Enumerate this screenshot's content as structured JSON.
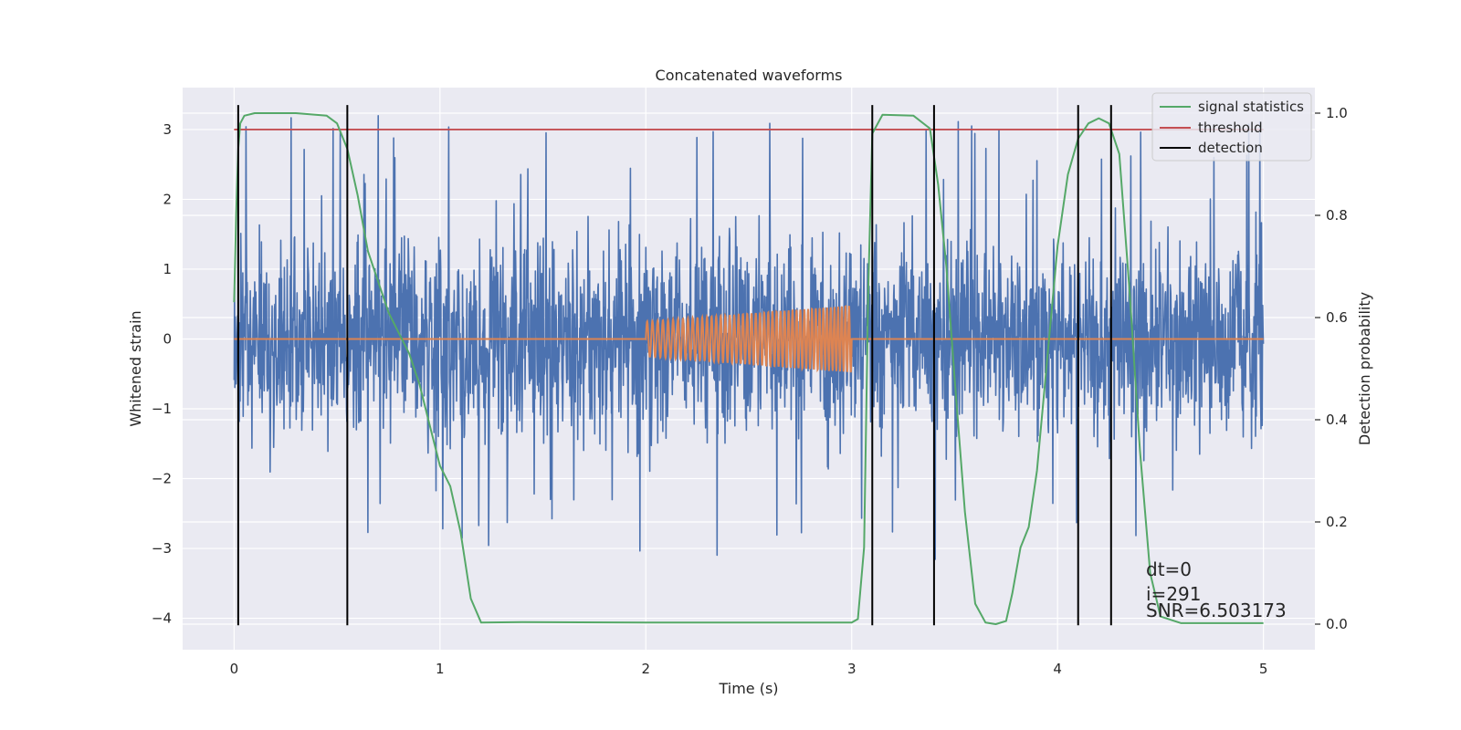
{
  "chart_data": {
    "type": "line",
    "title": "Concatenated waveforms",
    "xlabel": "Time (s)",
    "ylabel": "Whitened strain",
    "y2label": "Detection probability",
    "xlim": [
      -0.25,
      5.25
    ],
    "ylim": [
      -4.45,
      3.6
    ],
    "y2lim": [
      -0.05,
      1.05
    ],
    "xticks": [
      0,
      1,
      2,
      3,
      4,
      5
    ],
    "xtick_labels": [
      "0",
      "1",
      "2",
      "3",
      "4",
      "5"
    ],
    "yticks": [
      3,
      2,
      1,
      0,
      -1,
      -2,
      -3,
      -4
    ],
    "ytick_labels": [
      "3",
      "2",
      "1",
      "0",
      "−1",
      "−2",
      "−3",
      "−4"
    ],
    "y2ticks": [
      1.0,
      0.8,
      0.6,
      0.4,
      0.2,
      0.0
    ],
    "y2tick_labels": [
      "1.0",
      "0.8",
      "0.6",
      "0.4",
      "0.2",
      "0.0"
    ],
    "grid": true,
    "legend_position": "top-right",
    "colors": {
      "strain": "#4c72b0",
      "template": "#dd8452",
      "signal_statistics": "#55a868",
      "threshold": "#c44e52",
      "detection": "#000000",
      "axes_bg": "#eaeaf2",
      "grid": "#ffffff"
    },
    "series": [
      {
        "name": "whitened strain (noisy data)",
        "axis": "left",
        "x_range": [
          0,
          5
        ],
        "approx_envelope": [
          -2.3,
          2.3
        ],
        "peak_max": 3.35,
        "peak_min": -3.5
      },
      {
        "name": "injected waveform",
        "axis": "left",
        "flat_ranges": [
          [
            0,
            2
          ]
        ],
        "chirp": {
          "start": 2.0,
          "end": 3.0,
          "amp_start": 0.25,
          "amp_end": 0.48,
          "cycles": 48
        }
      },
      {
        "name": "signal statistics",
        "axis": "right",
        "x": [
          0.0,
          0.01,
          0.02,
          0.03,
          0.05,
          0.1,
          0.3,
          0.45,
          0.5,
          0.55,
          0.6,
          0.65,
          0.7,
          0.75,
          0.8,
          0.85,
          0.9,
          0.95,
          1.0,
          1.05,
          1.1,
          1.15,
          1.2,
          1.4,
          2.0,
          2.5,
          3.0,
          3.03,
          3.06,
          3.08,
          3.1,
          3.15,
          3.3,
          3.38,
          3.42,
          3.46,
          3.5,
          3.55,
          3.6,
          3.65,
          3.7,
          3.75,
          3.78,
          3.82,
          3.86,
          3.9,
          3.95,
          4.0,
          4.05,
          4.1,
          4.15,
          4.2,
          4.25,
          4.3,
          4.35,
          4.4,
          4.45,
          4.5,
          4.6,
          4.8,
          5.0
        ],
        "values": [
          0.63,
          0.8,
          0.93,
          0.98,
          0.995,
          1.0,
          1.0,
          0.995,
          0.98,
          0.93,
          0.84,
          0.73,
          0.67,
          0.61,
          0.57,
          0.53,
          0.47,
          0.39,
          0.31,
          0.27,
          0.18,
          0.05,
          0.003,
          0.004,
          0.003,
          0.003,
          0.003,
          0.01,
          0.15,
          0.65,
          0.96,
          0.997,
          0.995,
          0.97,
          0.86,
          0.7,
          0.48,
          0.22,
          0.04,
          0.003,
          0.0,
          0.006,
          0.06,
          0.15,
          0.19,
          0.3,
          0.52,
          0.74,
          0.88,
          0.95,
          0.98,
          0.99,
          0.98,
          0.92,
          0.65,
          0.34,
          0.1,
          0.015,
          0.002,
          0.002,
          0.002
        ]
      },
      {
        "name": "threshold",
        "axis": "left",
        "x": [
          0,
          5
        ],
        "values": [
          3,
          3
        ]
      },
      {
        "name": "detection",
        "axis": "left",
        "vertical_lines_x": [
          0.02,
          0.55,
          3.1,
          3.4,
          4.1,
          4.26
        ],
        "y_range": [
          -4.1,
          3.35
        ]
      }
    ],
    "legend": [
      "signal statistics",
      "threshold",
      "detection"
    ],
    "annotations": [
      "dt=0",
      "i=291",
      "SNR=6.503173"
    ]
  }
}
